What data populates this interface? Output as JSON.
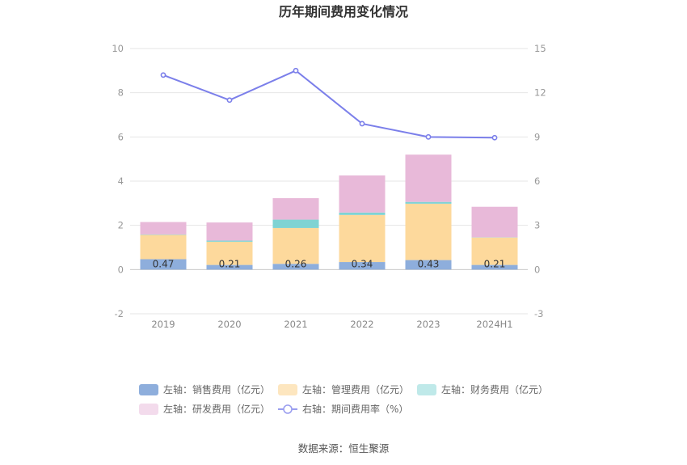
{
  "chart_data": {
    "type": "bar",
    "title": "历年期间费用变化情况",
    "categories": [
      "2019",
      "2020",
      "2021",
      "2022",
      "2023",
      "2024H1"
    ],
    "stacked": true,
    "left_axis": {
      "ylim": [
        -2,
        10
      ],
      "ticks": [
        "-2",
        "0",
        "2",
        "4",
        "6",
        "8",
        "10"
      ]
    },
    "right_axis": {
      "ylim": [
        -3,
        15
      ],
      "ticks": [
        "-3",
        "0",
        "3",
        "6",
        "9",
        "12",
        "15"
      ]
    },
    "series": [
      {
        "name": "左轴：销售费用（亿元）",
        "axis": "left",
        "type": "bar",
        "color": "#8eaedc",
        "values": [
          0.47,
          0.21,
          0.26,
          0.34,
          0.43,
          0.21
        ],
        "labels": [
          "0.47",
          "0.21",
          "0.26",
          "0.34",
          "0.43",
          "0.21"
        ]
      },
      {
        "name": "左轴：管理费用（亿元）",
        "axis": "left",
        "type": "bar",
        "color": "#fdd99c",
        "values": [
          1.1,
          1.05,
          1.62,
          2.13,
          2.55,
          1.24
        ]
      },
      {
        "name": "左轴：财务费用（亿元）",
        "axis": "left",
        "type": "bar",
        "color": "#7fd3d3",
        "values": [
          0.02,
          0.05,
          0.38,
          0.11,
          0.08,
          0.01
        ]
      },
      {
        "name": "左轴：研发费用（亿元）",
        "axis": "left",
        "type": "bar",
        "color": "#e8b9d9",
        "values": [
          0.56,
          0.82,
          0.97,
          1.68,
          2.14,
          1.38
        ]
      },
      {
        "name": "右轴：期间费用率（%）",
        "axis": "right",
        "type": "line",
        "color": "#7b7fea",
        "values": [
          13.2,
          11.5,
          13.5,
          9.9,
          9.0,
          8.95
        ]
      }
    ],
    "grid": true,
    "legend_position": "bottom"
  },
  "legend": [
    {
      "text": "左轴：销售费用（亿元）",
      "color": "#8eaedc",
      "kind": "rect"
    },
    {
      "text": "左轴：管理费用（亿元）",
      "color": "#fde6bf",
      "kind": "rect"
    },
    {
      "text": "左轴：财务费用（亿元）",
      "color": "#bfe9e9",
      "kind": "rect"
    },
    {
      "text": "左轴：研发费用（亿元）",
      "color": "#f3dbec",
      "kind": "rect"
    },
    {
      "text": "右轴：期间费用率（%）",
      "color": "#9a9eef",
      "kind": "line"
    }
  ],
  "source": "数据来源：恒生聚源"
}
